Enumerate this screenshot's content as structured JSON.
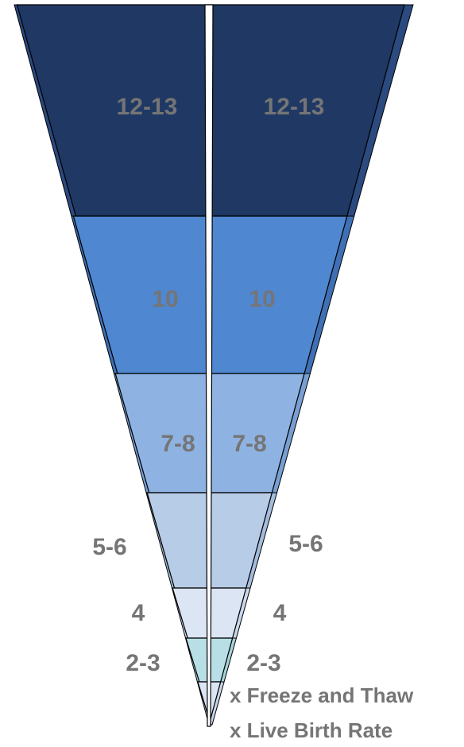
{
  "funnel": {
    "segments": [
      {
        "left_label": "12-13",
        "right_label": "12-13",
        "color": "#1f3864",
        "side_color": "#2b4a80"
      },
      {
        "left_label": "10",
        "right_label": "10",
        "color": "#4f87d1",
        "side_color": "#3f70b5"
      },
      {
        "left_label": "7-8",
        "right_label": "7-8",
        "color": "#8eb3e3",
        "side_color": "#789fd4"
      },
      {
        "left_label": "5-6",
        "right_label": "5-6",
        "color": "#b7cce6",
        "side_color": "#a3bcdd"
      },
      {
        "left_label": "4",
        "right_label": "4",
        "color": "#dbe5f3",
        "side_color": "#c9d7ec"
      },
      {
        "left_label": "2-3",
        "right_label": "2-3",
        "color": "#b8dfe6",
        "side_color": "#a4d2db"
      },
      {
        "left_label": "",
        "right_label": "",
        "color": "#dbe5f3",
        "side_color": "#c9d7ec"
      }
    ],
    "divider_color": "#ffffff",
    "outline_color": "#000000",
    "label_color": "#757575"
  },
  "legend": {
    "line1": "x Freeze and Thaw",
    "line2": "x Live Birth Rate"
  }
}
